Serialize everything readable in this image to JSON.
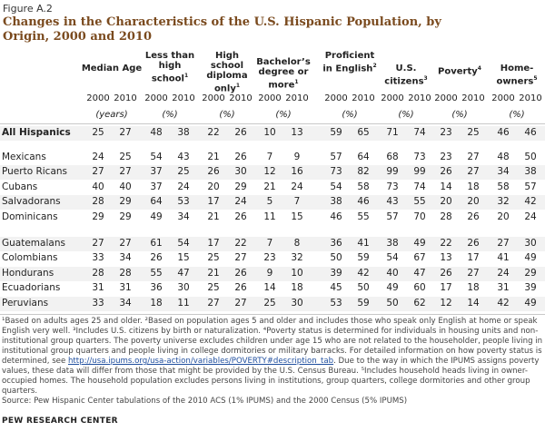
{
  "figure_label": "Figure A.2",
  "title": "Changes in the Characteristics of the U.S. Hispanic Population, by Origin, 2000 and 2010",
  "columns": [
    {
      "label": "Median Age",
      "sup": "",
      "unit": "(years)"
    },
    {
      "label": "Less than high school",
      "sup": "1",
      "unit": "(%)"
    },
    {
      "label": "High school diploma only",
      "sup": "1",
      "unit": "(%)"
    },
    {
      "label": "Bachelor’s degree or more",
      "sup": "1",
      "unit": "(%)"
    },
    {
      "label": "Proficient in English",
      "sup": "2",
      "unit": "(%)"
    },
    {
      "label": "U.S. citizens",
      "sup": "3",
      "unit": "(%)"
    },
    {
      "label": "Poverty",
      "sup": "4",
      "unit": "(%)"
    },
    {
      "label": "Home-owners",
      "sup": "5",
      "unit": "(%)"
    }
  ],
  "years": [
    "2000",
    "2010"
  ],
  "rows": [
    {
      "label": "All Hispanics",
      "bold": true,
      "values": [
        "25",
        "27",
        "48",
        "38",
        "22",
        "26",
        "10",
        "13",
        "59",
        "65",
        "71",
        "74",
        "23",
        "25",
        "46",
        "46"
      ]
    },
    {
      "label": "Mexicans",
      "values": [
        "24",
        "25",
        "54",
        "43",
        "21",
        "26",
        "7",
        "9",
        "57",
        "64",
        "68",
        "73",
        "23",
        "27",
        "48",
        "50"
      ]
    },
    {
      "label": "Puerto Ricans",
      "values": [
        "27",
        "27",
        "37",
        "25",
        "26",
        "30",
        "12",
        "16",
        "73",
        "82",
        "99",
        "99",
        "26",
        "27",
        "34",
        "38"
      ]
    },
    {
      "label": "Cubans",
      "values": [
        "40",
        "40",
        "37",
        "24",
        "20",
        "29",
        "21",
        "24",
        "54",
        "58",
        "73",
        "74",
        "14",
        "18",
        "58",
        "57"
      ]
    },
    {
      "label": "Salvadorans",
      "values": [
        "28",
        "29",
        "64",
        "53",
        "17",
        "24",
        "5",
        "7",
        "38",
        "46",
        "43",
        "55",
        "20",
        "20",
        "32",
        "42"
      ]
    },
    {
      "label": "Dominicans",
      "values": [
        "29",
        "29",
        "49",
        "34",
        "21",
        "26",
        "11",
        "15",
        "46",
        "55",
        "57",
        "70",
        "28",
        "26",
        "20",
        "24"
      ]
    },
    {
      "label": "Guatemalans",
      "values": [
        "27",
        "27",
        "61",
        "54",
        "17",
        "22",
        "7",
        "8",
        "36",
        "41",
        "38",
        "49",
        "22",
        "26",
        "27",
        "30"
      ]
    },
    {
      "label": "Colombians",
      "values": [
        "33",
        "34",
        "26",
        "15",
        "25",
        "27",
        "23",
        "32",
        "50",
        "59",
        "54",
        "67",
        "13",
        "17",
        "41",
        "49"
      ]
    },
    {
      "label": "Hondurans",
      "values": [
        "28",
        "28",
        "55",
        "47",
        "21",
        "26",
        "9",
        "10",
        "39",
        "42",
        "40",
        "47",
        "26",
        "27",
        "24",
        "29"
      ]
    },
    {
      "label": "Ecuadorians",
      "values": [
        "31",
        "31",
        "36",
        "30",
        "25",
        "26",
        "14",
        "18",
        "45",
        "50",
        "49",
        "60",
        "17",
        "18",
        "31",
        "39"
      ]
    },
    {
      "label": "Peruvians",
      "values": [
        "33",
        "34",
        "18",
        "11",
        "27",
        "27",
        "25",
        "30",
        "53",
        "59",
        "50",
        "62",
        "12",
        "14",
        "42",
        "49"
      ]
    }
  ],
  "footnote_before_link": "¹Based on adults ages 25 and older. ²Based on population ages 5 and older and includes those who speak only English at home or speak English very well. ³Includes U.S. citizens by birth or naturalization. ⁴Poverty status is determined for individuals in housing units and non-institutional group quarters. The poverty universe excludes children under age 15 who are not related to the householder, people living in institutional group quarters and people living in college dormitories or military barracks. For detailed information on how poverty status is determined, see ",
  "footnote_link": "http://usa.ipums.org/usa-action/variables/POVERTY#description_tab",
  "footnote_after_link": ". Due to the way in which the IPUMS assigns poverty values, these data will differ from those that might be provided by the U.S. Census Bureau. ⁵Includes household heads living in owner-occupied homes. The household population excludes persons living in institutions, group quarters, college dormitories and other group quarters.",
  "source": "Source: Pew Hispanic Center tabulations of the 2010 ACS (1% IPUMS) and the 2000 Census (5% IPUMS)",
  "organization": "PEW RESEARCH CENTER"
}
